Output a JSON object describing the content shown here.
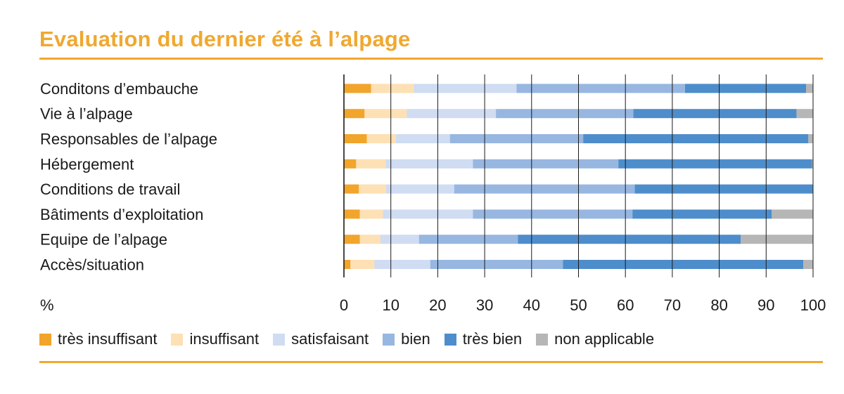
{
  "chart_data": {
    "type": "bar",
    "orientation": "horizontal",
    "stacked": true,
    "title": "Evaluation du dernier été à l’alpage",
    "unit_label": "%",
    "xlim": [
      0,
      100
    ],
    "xticks": [
      0,
      10,
      20,
      30,
      40,
      50,
      60,
      70,
      80,
      90,
      100
    ],
    "categories": [
      "Conditons d’embauche",
      "Vie à l’alpage",
      "Responsables de l’alpage",
      "Hébergement",
      "Conditions de travail",
      "Bâtiments d’exploitation",
      "Equipe de l’alpage",
      "Accès/situation"
    ],
    "series": [
      {
        "name": "très insuffisant",
        "color": "#f2a52b",
        "values": [
          5.8,
          4.4,
          4.9,
          2.6,
          3.2,
          3.4,
          3.4,
          1.4
        ]
      },
      {
        "name": "insuffisant",
        "color": "#fde0b4",
        "values": [
          9.1,
          9.0,
          6.2,
          6.3,
          5.8,
          4.9,
          4.4,
          5.1
        ]
      },
      {
        "name": "satisfaisant",
        "color": "#cfdcf2",
        "values": [
          21.9,
          19.0,
          11.5,
          18.6,
          14.5,
          19.2,
          8.2,
          11.9
        ]
      },
      {
        "name": "bien",
        "color": "#97b7e1",
        "values": [
          35.9,
          29.3,
          28.4,
          31.0,
          38.5,
          34.0,
          21.1,
          28.3
        ]
      },
      {
        "name": "très bien",
        "color": "#4e8dcb",
        "values": [
          25.8,
          34.8,
          48.0,
          41.3,
          38.0,
          29.7,
          47.5,
          51.2
        ]
      },
      {
        "name": "non applicable",
        "color": "#b6b6b6",
        "values": [
          1.5,
          3.5,
          1.0,
          0.2,
          0.0,
          8.8,
          15.4,
          2.1
        ]
      }
    ]
  }
}
